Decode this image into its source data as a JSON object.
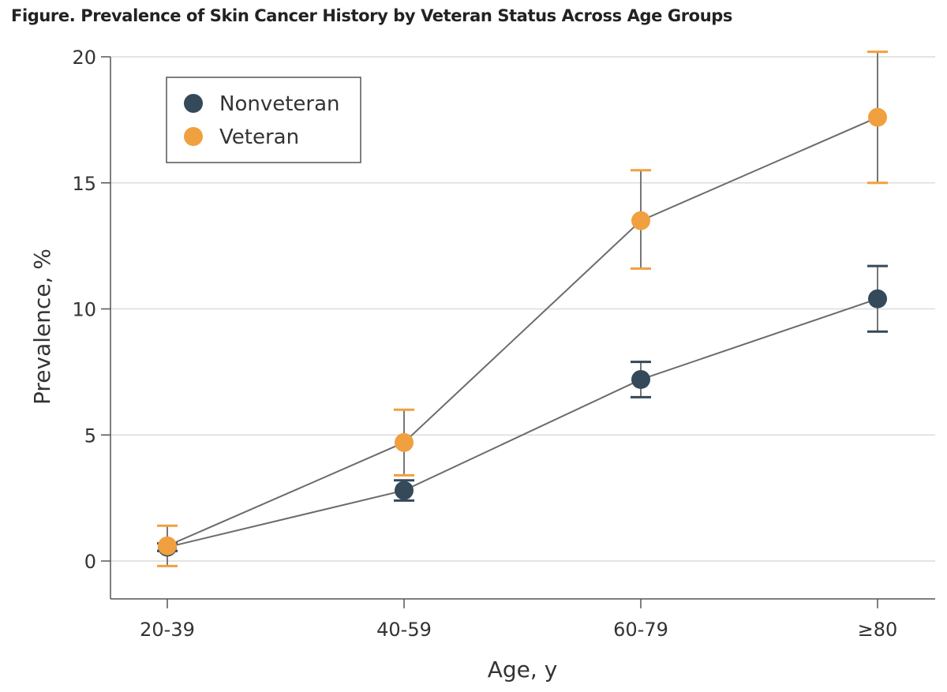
{
  "chart_data": {
    "type": "line",
    "title": "Figure.  Prevalence of Skin Cancer History by Veteran Status Across Age Groups",
    "xlabel": "Age, y",
    "ylabel": "Prevalence, %",
    "categories": [
      "20-39",
      "40-59",
      "60-79",
      "≥80"
    ],
    "ylim": [
      -1.5,
      20.4
    ],
    "yticks": [
      0,
      5,
      10,
      15,
      20
    ],
    "grid": true,
    "legend": "top-left",
    "series": [
      {
        "name": "Nonveteran",
        "color": "#34495a",
        "values": [
          0.55,
          2.8,
          7.2,
          10.4
        ],
        "ci_low": [
          0.4,
          2.4,
          6.5,
          9.1
        ],
        "ci_high": [
          0.7,
          3.2,
          7.9,
          11.7
        ]
      },
      {
        "name": "Veteran",
        "color": "#f0a03f",
        "values": [
          0.6,
          4.7,
          13.5,
          17.6
        ],
        "ci_low": [
          -0.2,
          3.4,
          11.6,
          15.0
        ],
        "ci_high": [
          1.4,
          6.0,
          15.5,
          20.2
        ]
      }
    ]
  }
}
